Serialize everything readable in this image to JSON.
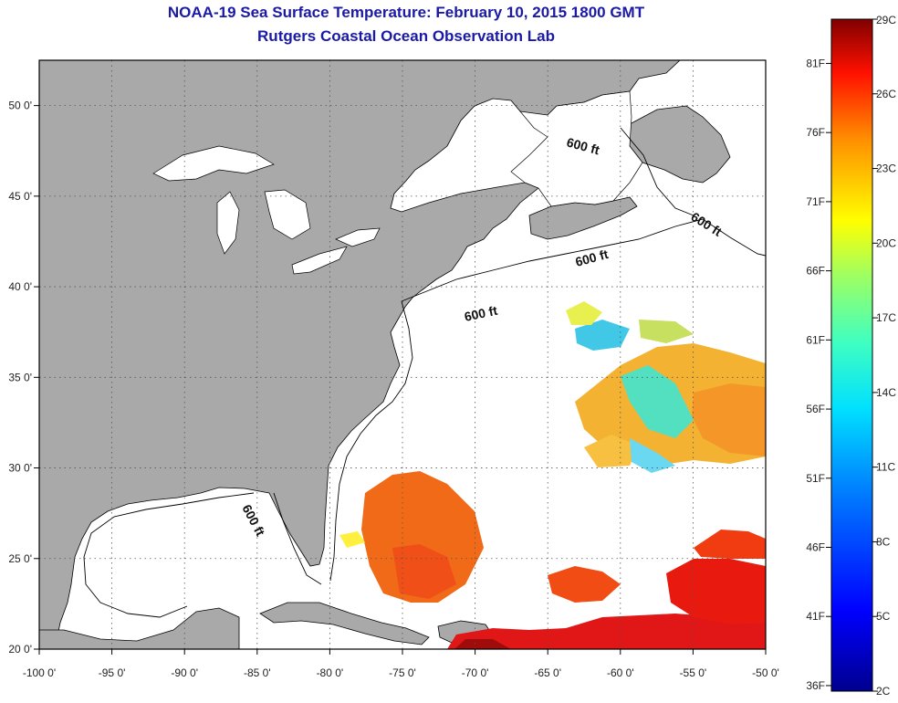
{
  "header": {
    "title": "NOAA-19 Sea Surface Temperature:  February 10, 2015 1800 GMT",
    "subtitle": "Rutgers Coastal Ocean Observation Lab"
  },
  "map": {
    "lon_range": [
      -100,
      -50
    ],
    "lat_range": [
      20,
      52.5
    ],
    "lon_ticks": [
      "-100 0'",
      "-95 0'",
      "-90 0'",
      "-85 0'",
      "-80 0'",
      "-75 0'",
      "-70 0'",
      "-65 0'",
      "-60 0'",
      "-55 0'",
      "-50 0'"
    ],
    "lat_ticks": [
      "20 0'",
      "25 0'",
      "30 0'",
      "35 0'",
      "40 0'",
      "45 0'",
      "50 0'"
    ],
    "isobath_label": "600 ft",
    "colors": {
      "land": "#a9a9a9",
      "ocean": "#ffffff",
      "grid": "#555555"
    }
  },
  "colorbar": {
    "celsius": [
      "29C",
      "26C",
      "23C",
      "20C",
      "17C",
      "14C",
      "11C",
      "8C",
      "5C",
      "2C"
    ],
    "fahrenheit": [
      "81F",
      "76F",
      "71F",
      "66F",
      "61F",
      "56F",
      "51F",
      "46F",
      "41F",
      "36F"
    ],
    "range_c": [
      2,
      29
    ]
  }
}
